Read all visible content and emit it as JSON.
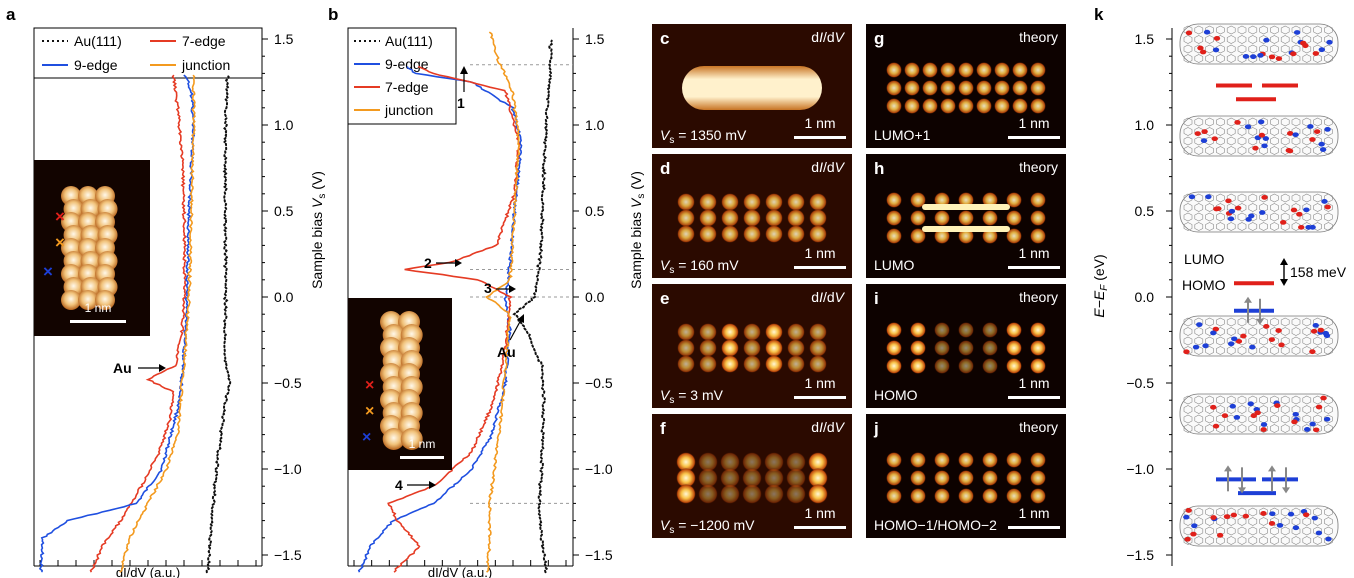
{
  "colors": {
    "au": "#111111",
    "edge9": "#1f4fe0",
    "edge7": "#e53b24",
    "junction": "#f39a1f",
    "guide": "#9a9a9a",
    "lobe_red": "#e0201a",
    "lobe_blue": "#1d3fd6",
    "level_red": "#e0201a",
    "level_blue": "#1d3fd6"
  },
  "panel_a": {
    "letter": "a",
    "legend": [
      "Au(111)",
      "7-edge",
      "9-edge",
      "junction"
    ],
    "ylabel": "Sample bias",
    "ylabel_sym": "V",
    "ylabel_sub": "s",
    "ylabel_unit": "(V)",
    "ticks": [
      "1.5",
      "1.0",
      "0.5",
      "0.0",
      "−0.5",
      "−1.0",
      "−1.5"
    ],
    "xlabel": "dI/dV (a.u.)",
    "inset_scalebar": "1 nm",
    "annotation_au": "Au"
  },
  "panel_b": {
    "letter": "b",
    "legend": [
      "Au(111)",
      "9-edge",
      "7-edge",
      "junction"
    ],
    "ylabel": "Sample bias",
    "ylabel_sym": "V",
    "ylabel_sub": "s",
    "ylabel_unit": "(V)",
    "ticks": [
      "1.5",
      "1.0",
      "0.5",
      "0.0",
      "−0.5",
      "−1.0",
      "−1.5"
    ],
    "xlabel": "dI/dV (a.u.)",
    "inset_scalebar": "1 nm",
    "peaks": [
      "1",
      "2",
      "3",
      "4"
    ],
    "annotation_au": "Au"
  },
  "images": [
    {
      "letter": "c",
      "tag": "dI/dV",
      "value": "V",
      "sub": "s",
      "rest": " = 1350 mV",
      "scalebar": "1 nm"
    },
    {
      "letter": "g",
      "tag": "theory",
      "label": "LUMO+1",
      "scalebar": "1 nm"
    },
    {
      "letter": "d",
      "tag": "dI/dV",
      "value": "V",
      "sub": "s",
      "rest": " = 160 mV",
      "scalebar": "1 nm"
    },
    {
      "letter": "h",
      "tag": "theory",
      "label": "LUMO",
      "scalebar": "1 nm"
    },
    {
      "letter": "e",
      "tag": "dI/dV",
      "value": "V",
      "sub": "s",
      "rest": " = 3 mV",
      "scalebar": "1 nm"
    },
    {
      "letter": "i",
      "tag": "theory",
      "label": "HOMO",
      "scalebar": "1 nm"
    },
    {
      "letter": "f",
      "tag": "dI/dV",
      "value": "V",
      "sub": "s",
      "rest": " = −1200 mV",
      "scalebar": "1 nm"
    },
    {
      "letter": "j",
      "tag": "theory",
      "label": "HOMO−1/HOMO−2",
      "scalebar": "1 nm"
    }
  ],
  "panel_k": {
    "letter": "k",
    "ylabel": "E−E",
    "ylabel_sub": "F",
    "ylabel_unit": "(eV)",
    "ticks": [
      "1.5",
      "1.0",
      "0.5",
      "0.0",
      "−0.5",
      "−1.0",
      "−1.5"
    ],
    "lumo": "LUMO",
    "homo": "HOMO",
    "gap": "158 meV"
  },
  "chart_data": [
    {
      "type": "line",
      "title": "",
      "xlabel": "dI/dV (a.u.)",
      "ylabel": "Sample bias Vs (V)",
      "ylim": [
        -1.6,
        1.6
      ],
      "annotations": [
        {
          "text": "Au",
          "y": -0.47
        }
      ],
      "series": [
        {
          "name": "Au(111)",
          "style": "dotted",
          "points": [
            [
              -1.6,
              0.76
            ],
            [
              -1.3,
              0.78
            ],
            [
              -1.0,
              0.8
            ],
            [
              -0.8,
              0.82
            ],
            [
              -0.6,
              0.84
            ],
            [
              -0.5,
              0.86
            ],
            [
              -0.4,
              0.84
            ],
            [
              0.0,
              0.84
            ],
            [
              0.5,
              0.84
            ],
            [
              1.0,
              0.84
            ],
            [
              1.3,
              0.85
            ]
          ]
        },
        {
          "name": "7-edge",
          "points": [
            [
              -1.6,
              0.25
            ],
            [
              -1.45,
              0.3
            ],
            [
              -1.3,
              0.38
            ],
            [
              -1.1,
              0.47
            ],
            [
              -0.9,
              0.55
            ],
            [
              -0.7,
              0.6
            ],
            [
              -0.55,
              0.61
            ],
            [
              -0.48,
              0.5
            ],
            [
              -0.4,
              0.62
            ],
            [
              -0.2,
              0.65
            ],
            [
              0.0,
              0.66
            ],
            [
              0.4,
              0.66
            ],
            [
              0.8,
              0.65
            ],
            [
              1.1,
              0.63
            ],
            [
              1.3,
              0.61
            ]
          ]
        },
        {
          "name": "9-edge",
          "points": [
            [
              -1.6,
              0.03
            ],
            [
              -1.4,
              0.04
            ],
            [
              -1.3,
              0.15
            ],
            [
              -1.2,
              0.45
            ],
            [
              -1.0,
              0.56
            ],
            [
              -0.8,
              0.6
            ],
            [
              -0.6,
              0.64
            ],
            [
              -0.3,
              0.66
            ],
            [
              0.0,
              0.67
            ],
            [
              0.5,
              0.68
            ],
            [
              1.0,
              0.7
            ],
            [
              1.2,
              0.69
            ],
            [
              1.3,
              0.66
            ]
          ]
        },
        {
          "name": "junction",
          "points": [
            [
              -1.6,
              0.38
            ],
            [
              -1.4,
              0.42
            ],
            [
              -1.2,
              0.5
            ],
            [
              -1.0,
              0.58
            ],
            [
              -0.8,
              0.63
            ],
            [
              -0.5,
              0.65
            ],
            [
              -0.2,
              0.67
            ],
            [
              0.0,
              0.68
            ],
            [
              0.5,
              0.69
            ],
            [
              1.0,
              0.7
            ],
            [
              1.3,
              0.7
            ]
          ]
        }
      ]
    },
    {
      "type": "line",
      "title": "",
      "xlabel": "dI/dV (a.u.)",
      "ylabel": "Sample bias Vs (V)",
      "ylim": [
        -1.6,
        1.6
      ],
      "annotations": [
        {
          "text": "1",
          "y": 1.35
        },
        {
          "text": "2",
          "y": 0.16
        },
        {
          "text": "3",
          "y": 0.0
        },
        {
          "text": "4",
          "y": -1.2
        },
        {
          "text": "Au",
          "y": -0.1
        }
      ],
      "series": [
        {
          "name": "Au(111)",
          "style": "dotted",
          "points": [
            [
              -1.6,
              0.88
            ],
            [
              -1.4,
              0.86
            ],
            [
              -1.2,
              0.85
            ],
            [
              -1.0,
              0.86
            ],
            [
              -0.6,
              0.87
            ],
            [
              -0.4,
              0.86
            ],
            [
              -0.2,
              0.8
            ],
            [
              -0.1,
              0.74
            ],
            [
              0.0,
              0.83
            ],
            [
              0.3,
              0.86
            ],
            [
              0.7,
              0.87
            ],
            [
              1.0,
              0.88
            ],
            [
              1.3,
              0.9
            ],
            [
              1.5,
              0.9
            ]
          ]
        },
        {
          "name": "9-edge",
          "points": [
            [
              -1.6,
              0.05
            ],
            [
              -1.45,
              0.1
            ],
            [
              -1.3,
              0.2
            ],
            [
              -1.2,
              0.38
            ],
            [
              -1.0,
              0.55
            ],
            [
              -0.8,
              0.64
            ],
            [
              -0.5,
              0.7
            ],
            [
              -0.2,
              0.72
            ],
            [
              0.0,
              0.7
            ],
            [
              0.2,
              0.72
            ],
            [
              0.5,
              0.74
            ],
            [
              0.9,
              0.77
            ],
            [
              1.1,
              0.73
            ],
            [
              1.25,
              0.55
            ],
            [
              1.3,
              0.3
            ],
            [
              1.35,
              0.25
            ]
          ]
        },
        {
          "name": "7-edge",
          "points": [
            [
              -1.6,
              0.2
            ],
            [
              -1.45,
              0.32
            ],
            [
              -1.3,
              0.22
            ],
            [
              -1.2,
              0.18
            ],
            [
              -1.1,
              0.38
            ],
            [
              -0.9,
              0.55
            ],
            [
              -0.6,
              0.65
            ],
            [
              -0.3,
              0.7
            ],
            [
              0.0,
              0.72
            ],
            [
              0.1,
              0.58
            ],
            [
              0.16,
              0.25
            ],
            [
              0.2,
              0.45
            ],
            [
              0.3,
              0.66
            ],
            [
              0.6,
              0.74
            ],
            [
              0.9,
              0.76
            ],
            [
              1.2,
              0.7
            ],
            [
              1.3,
              0.38
            ],
            [
              1.35,
              0.3
            ]
          ]
        },
        {
          "name": "junction",
          "points": [
            [
              -1.6,
              0.62
            ],
            [
              -1.4,
              0.63
            ],
            [
              -1.2,
              0.63
            ],
            [
              -1.0,
              0.65
            ],
            [
              -0.7,
              0.68
            ],
            [
              -0.4,
              0.7
            ],
            [
              -0.1,
              0.72
            ],
            [
              0.0,
              0.62
            ],
            [
              0.1,
              0.72
            ],
            [
              0.5,
              0.74
            ],
            [
              0.9,
              0.76
            ],
            [
              1.2,
              0.73
            ],
            [
              1.4,
              0.66
            ],
            [
              1.55,
              0.63
            ]
          ]
        }
      ]
    },
    {
      "type": "line",
      "title": "",
      "xlabel": "",
      "ylabel": "E−EF (eV)",
      "ylim": [
        -1.6,
        1.6
      ],
      "levels": [
        {
          "name": "LUMO+1",
          "energy": 1.23,
          "color": "red"
        },
        {
          "name": "LUMO",
          "energy": 0.08,
          "color": "red"
        },
        {
          "name": "HOMO",
          "energy": -0.08,
          "color": "blue"
        },
        {
          "name": "HOMO−1",
          "energy": -1.06,
          "color": "blue"
        },
        {
          "name": "HOMO−2",
          "energy": -1.1,
          "color": "blue"
        }
      ],
      "gap_meV": 158
    }
  ]
}
